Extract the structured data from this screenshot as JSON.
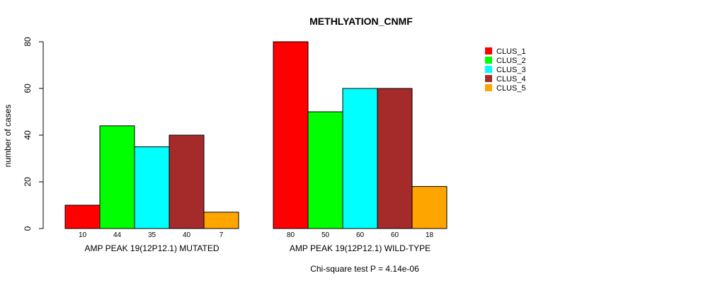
{
  "chart_data": {
    "type": "bar",
    "title": "METHLYATION_CNMF",
    "ylabel": "number of cases",
    "xlabel": "",
    "ylim": [
      0,
      80
    ],
    "yticks": [
      0,
      20,
      40,
      60,
      80
    ],
    "groups": [
      "AMP PEAK 19(12P12.1) MUTATED",
      "AMP PEAK 19(12P12.1) WILD-TYPE"
    ],
    "series": [
      {
        "name": "CLUS_1",
        "color": "#ff0000",
        "values": [
          10,
          80
        ]
      },
      {
        "name": "CLUS_2",
        "color": "#00ff00",
        "values": [
          44,
          50
        ]
      },
      {
        "name": "CLUS_3",
        "color": "#00ffff",
        "values": [
          35,
          60
        ]
      },
      {
        "name": "CLUS_4",
        "color": "#a52a2a",
        "values": [
          40,
          60
        ]
      },
      {
        "name": "CLUS_5",
        "color": "#ffa500",
        "values": [
          7,
          18
        ]
      }
    ],
    "legend_position": "top-right",
    "footnote": "Chi-square test P = 4.14e-06"
  }
}
